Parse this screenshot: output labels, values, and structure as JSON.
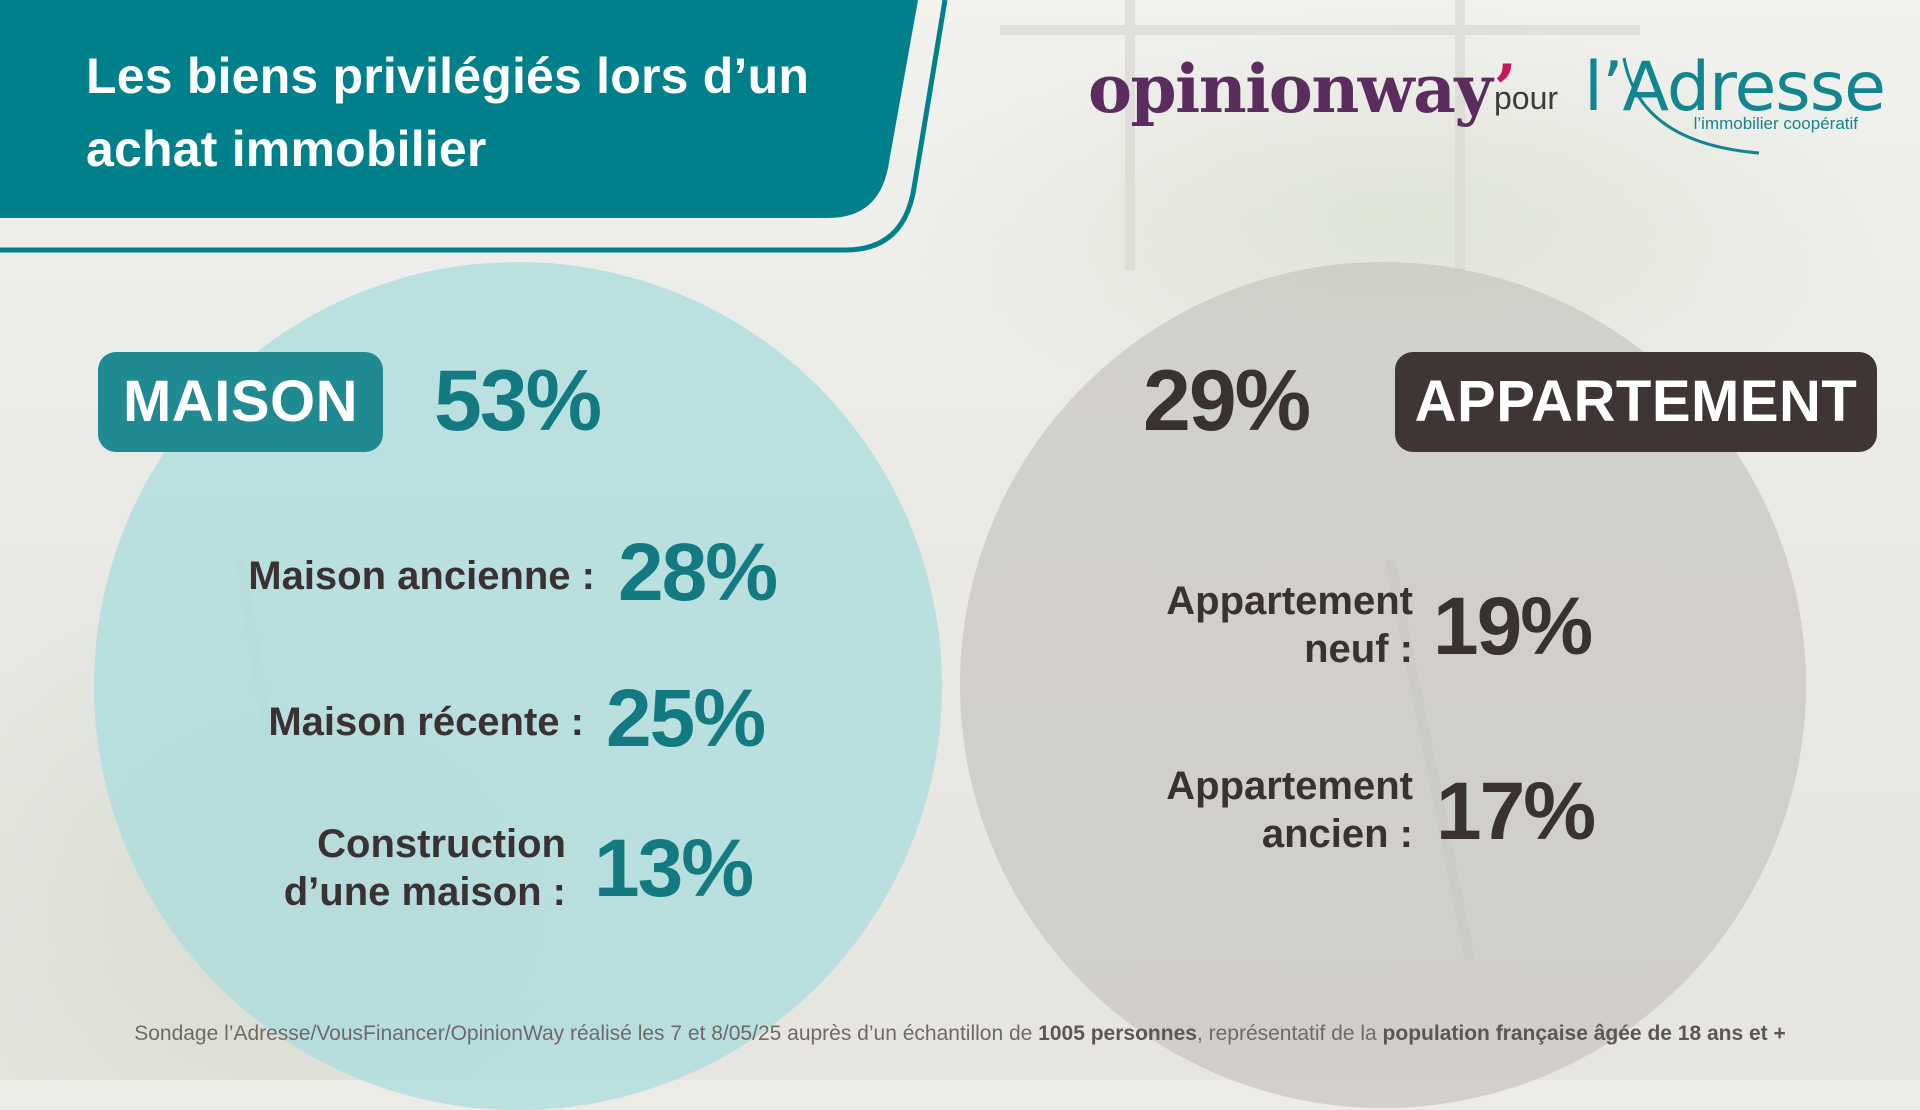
{
  "title_lines": [
    "Les biens privilégiés lors d’un",
    "achat immobilier"
  ],
  "logos": {
    "opinionway": "opinionway",
    "opinionway_mark": "’",
    "pour": "pour",
    "adresse": "l’Adresse",
    "adresse_tagline": "l’immobilier coopératif"
  },
  "colors": {
    "teal": "#127a80",
    "teal_pill": "#1f8a91",
    "dark": "#3a3232",
    "opinionway": "#5b2d5e"
  },
  "chart_data": {
    "type": "table",
    "groups": [
      {
        "name": "MAISON",
        "total_label": "53%",
        "total": 53,
        "items": [
          {
            "label": "Maison ancienne :",
            "value_label": "28%",
            "value": 28
          },
          {
            "label": "Maison récente :",
            "value_label": "25%",
            "value": 25
          },
          {
            "label_lines": [
              "Construction",
              "d’une maison :"
            ],
            "value_label": "13%",
            "value": 13
          }
        ]
      },
      {
        "name": "APPARTEMENT",
        "total_label": "29%",
        "total": 29,
        "items": [
          {
            "label_lines": [
              "Appartement",
              "neuf :"
            ],
            "value_label": "19%",
            "value": 19
          },
          {
            "label_lines": [
              "Appartement",
              "ancien :"
            ],
            "value_label": "17%",
            "value": 17
          }
        ]
      }
    ]
  },
  "footnote": {
    "p1": "Sondage l’Adresse/VousFinancer/OpinionWay réalisé les 7 et 8/05/25 auprès d’un échantillon de ",
    "b1": "1005 personnes",
    "p2": ", représentatif de la ",
    "b2": "population française âgée de 18 ans et +"
  }
}
